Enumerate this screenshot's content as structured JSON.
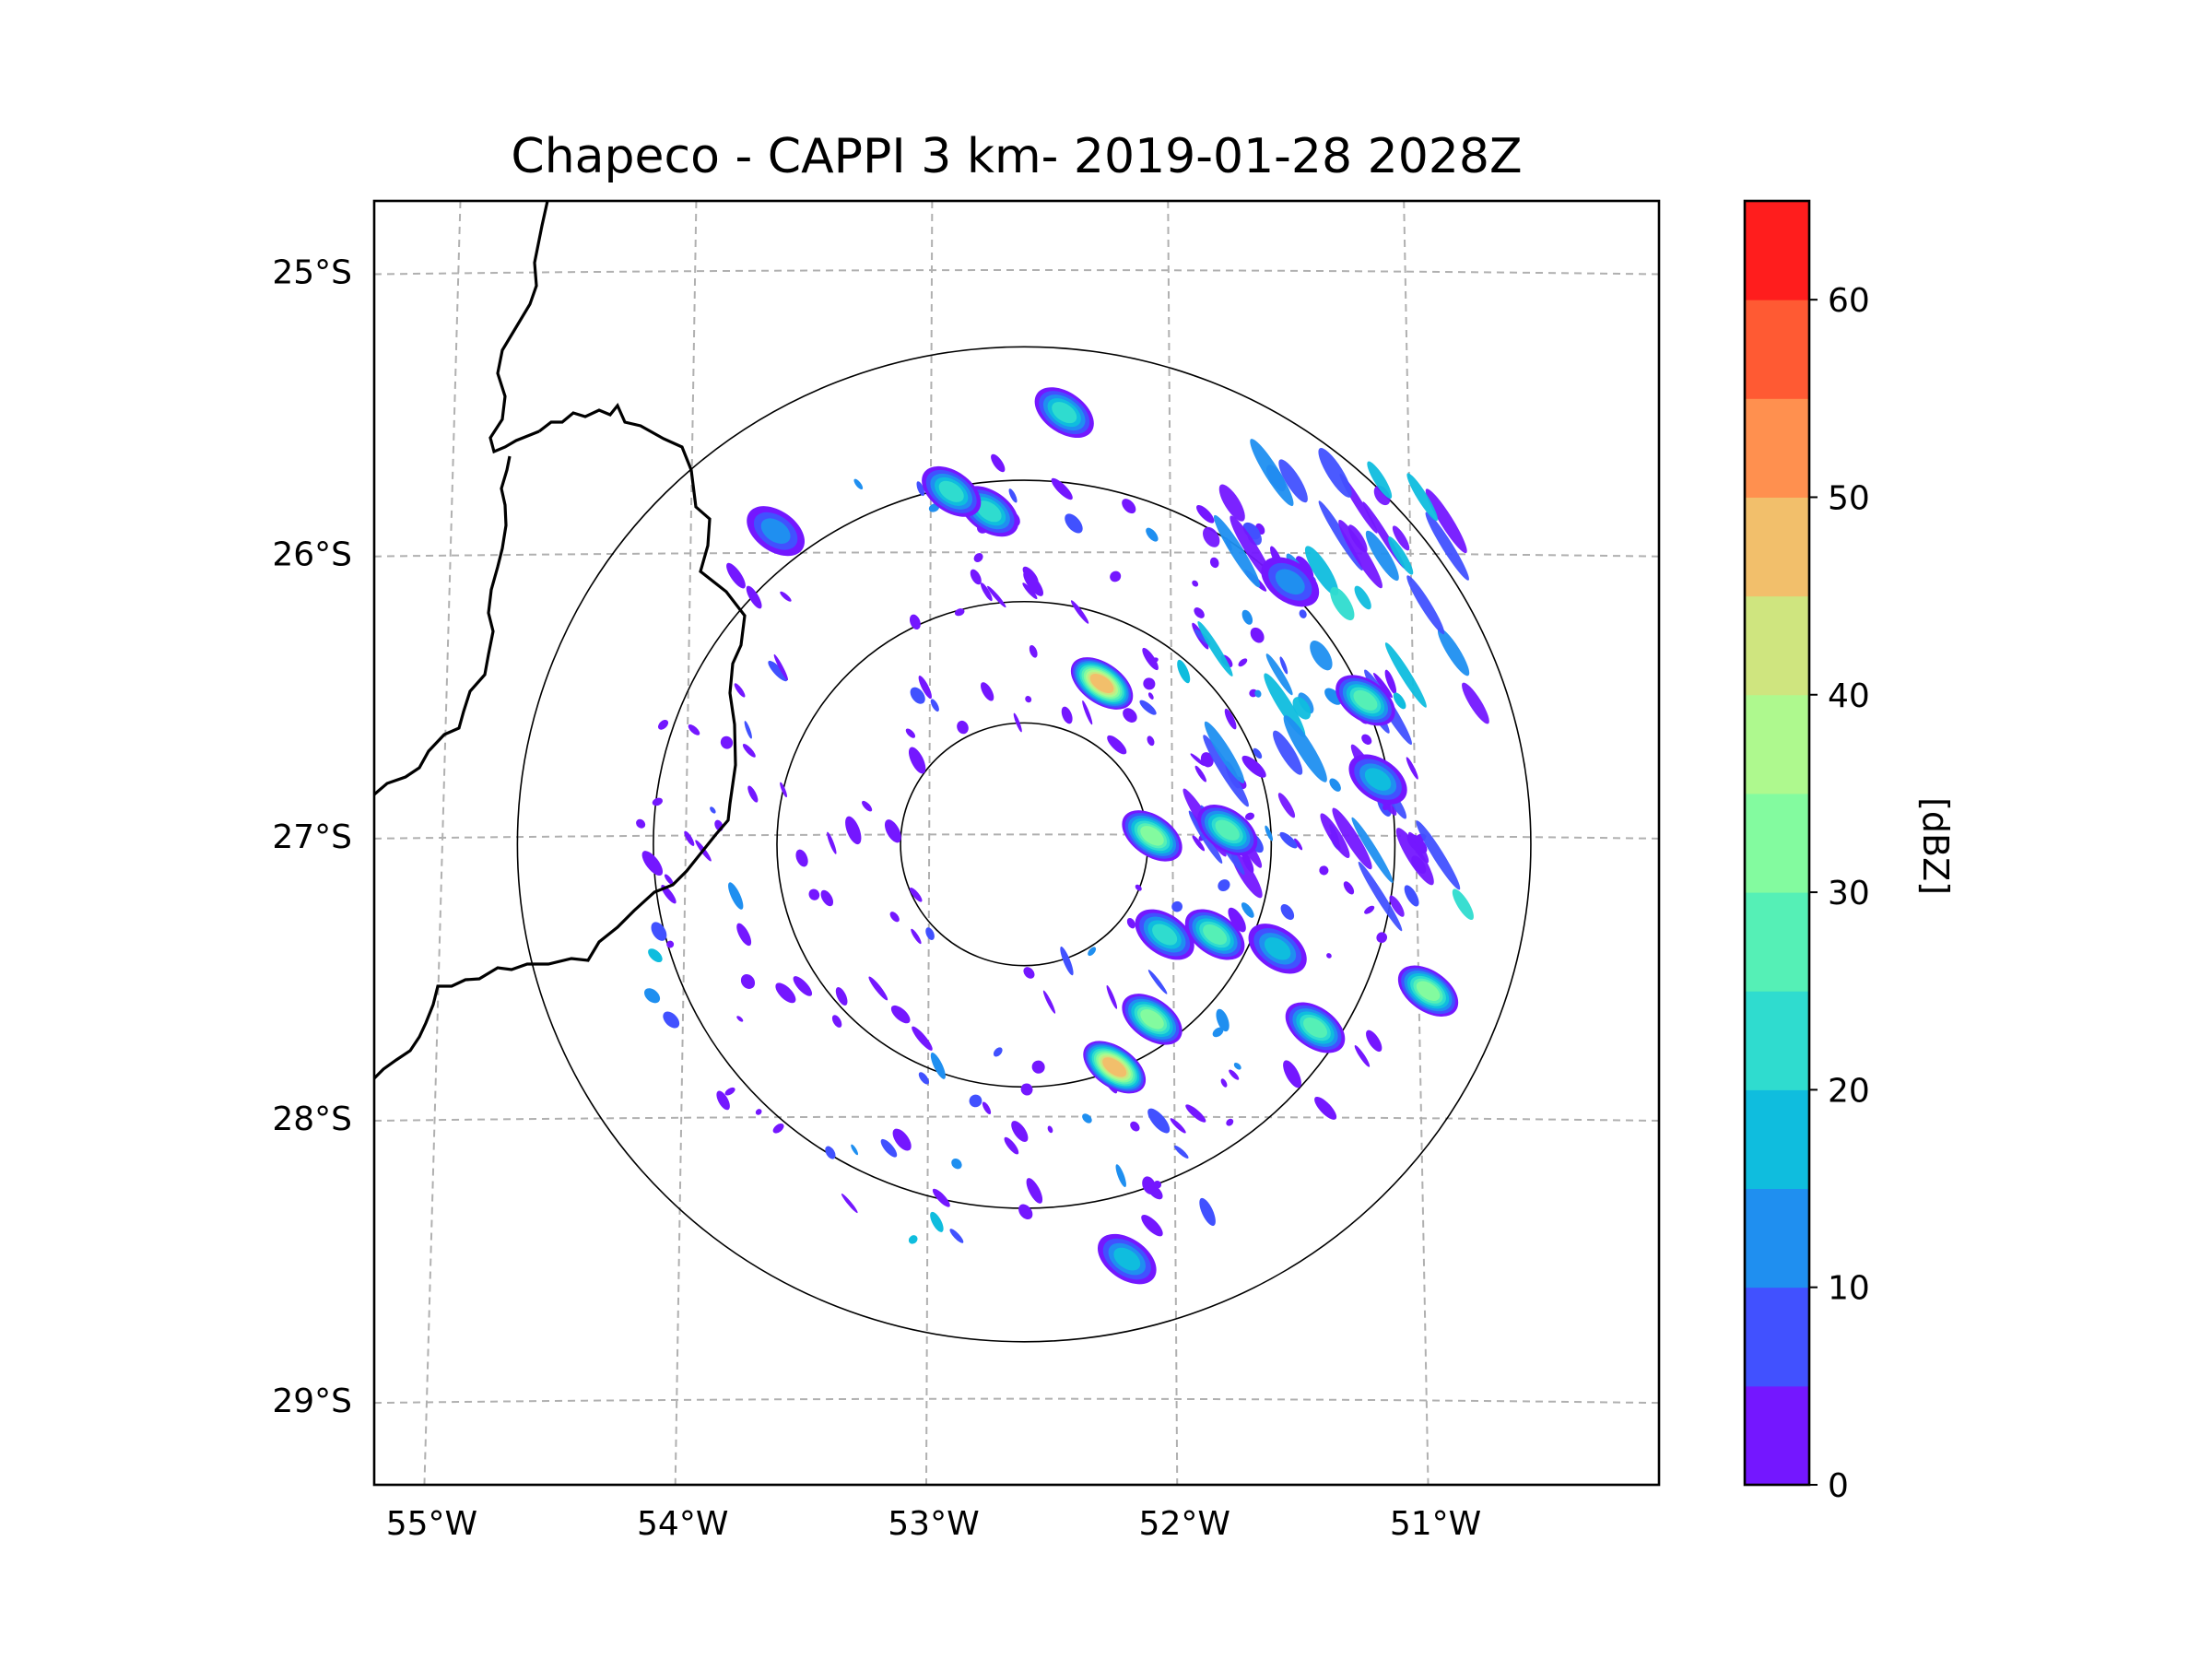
{
  "chart_data": {
    "type": "heatmap",
    "title": "Chapeco - CAPPI 3 km- 2019-01-28 2028Z",
    "xlabel": "",
    "ylabel": "",
    "x_ticks": [
      "55°W",
      "54°W",
      "53°W",
      "52°W",
      "51°W"
    ],
    "y_ticks": [
      "25°S",
      "26°S",
      "27°S",
      "28°S",
      "29°S"
    ],
    "xlim": [
      -55.2,
      -50.08
    ],
    "ylim": [
      -29.3,
      -24.75
    ],
    "grid": true,
    "radar_center": [
      -52.61,
      -27.03
    ],
    "range_rings_deg_approx": [
      0.5,
      1.0,
      1.5,
      2.05
    ],
    "colorbar": {
      "label": "[dBZ]",
      "ticks": [
        "0",
        "10",
        "20",
        "30",
        "40",
        "50",
        "60"
      ],
      "range": [
        0,
        65
      ],
      "step": 5,
      "colors": [
        "#7417ff",
        "#4151ff",
        "#1f8ff0",
        "#0fbdde",
        "#2fdccf",
        "#55f0b6",
        "#83fb9f",
        "#aef98e",
        "#cfe57f",
        "#f2bf6b",
        "#ff904f",
        "#ff5a33",
        "#ff1d1d"
      ]
    },
    "echo_cells": [
      {
        "lon": -52.3,
        "lat": -26.46,
        "dbz": 45
      },
      {
        "lon": -52.1,
        "lat": -27.0,
        "dbz": 30
      },
      {
        "lon": -51.8,
        "lat": -26.98,
        "dbz": 28
      },
      {
        "lon": -52.25,
        "lat": -27.82,
        "dbz": 48
      },
      {
        "lon": -52.1,
        "lat": -27.65,
        "dbz": 30
      },
      {
        "lon": -51.0,
        "lat": -27.55,
        "dbz": 30
      },
      {
        "lon": -51.45,
        "lat": -27.68,
        "dbz": 25
      },
      {
        "lon": -51.25,
        "lat": -26.52,
        "dbz": 25
      },
      {
        "lon": -52.75,
        "lat": -25.85,
        "dbz": 22
      },
      {
        "lon": -52.9,
        "lat": -25.78,
        "dbz": 22
      },
      {
        "lon": -52.45,
        "lat": -25.5,
        "dbz": 22
      },
      {
        "lon": -52.05,
        "lat": -27.35,
        "dbz": 22
      },
      {
        "lon": -51.85,
        "lat": -27.35,
        "dbz": 25
      },
      {
        "lon": -52.2,
        "lat": -28.5,
        "dbz": 18
      },
      {
        "lon": -51.55,
        "lat": -26.1,
        "dbz": 12
      },
      {
        "lon": -51.2,
        "lat": -26.8,
        "dbz": 15
      },
      {
        "lon": -51.6,
        "lat": -27.4,
        "dbz": 15
      },
      {
        "lon": -53.6,
        "lat": -25.92,
        "dbz": 12
      }
    ],
    "annotations": [
      "Country/state boundary lines on the western side of the map"
    ]
  }
}
